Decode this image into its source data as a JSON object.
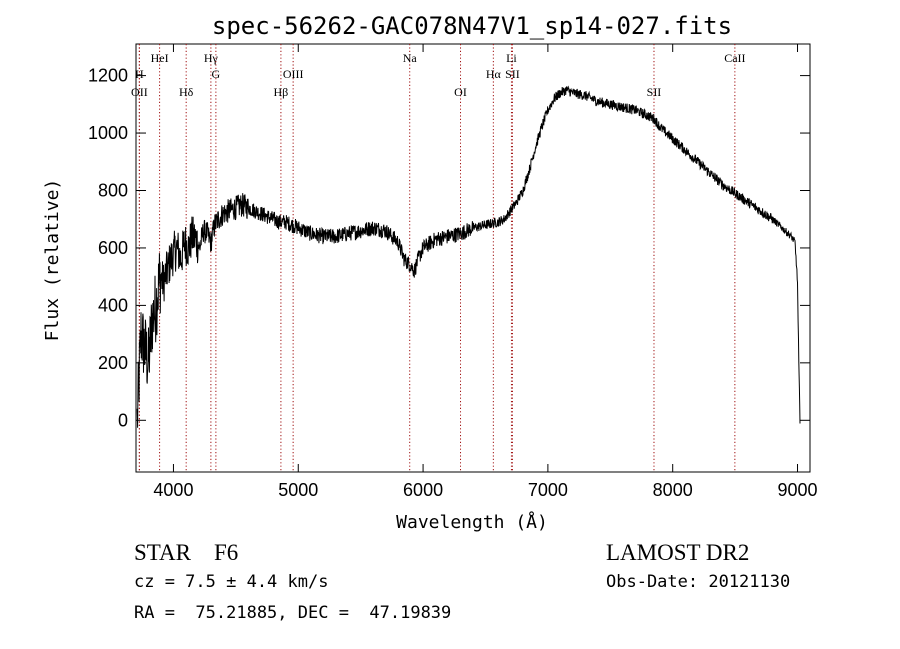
{
  "chart_data": {
    "type": "line",
    "title": "spec-56262-GAC078N47V1_sp14-027.fits",
    "xlabel": "Wavelength (Å)",
    "ylabel": "Flux (relative)",
    "xlim": [
      3700,
      9100
    ],
    "ylim": [
      -180,
      1310
    ],
    "x_ticks": [
      4000,
      5000,
      6000,
      7000,
      8000,
      9000
    ],
    "y_ticks": [
      0,
      200,
      400,
      600,
      800,
      1000,
      1200
    ],
    "grid": false,
    "legend": "none",
    "line_color": "#000000",
    "marker_line_color": "#a01010",
    "series": [
      {
        "x": [
          3710,
          3740,
          3770,
          3800,
          3830,
          3860,
          3890,
          3920,
          3950,
          3980,
          4000,
          4030,
          4060,
          4090,
          4120,
          4150,
          4180,
          4210,
          4240,
          4270,
          4300,
          4330,
          4360,
          4400,
          4450,
          4500,
          4550,
          4600,
          4650,
          4700,
          4750,
          4800,
          4850,
          4900,
          4950,
          5000,
          5100,
          5200,
          5300,
          5400,
          5500,
          5600,
          5700,
          5800,
          5850,
          5900,
          5930,
          5960,
          6000,
          6100,
          6200,
          6300,
          6400,
          6500,
          6600,
          6650,
          6700,
          6750,
          6800,
          6850,
          6900,
          6950,
          7000,
          7050,
          7100,
          7150,
          7200,
          7300,
          7400,
          7500,
          7600,
          7700,
          7800,
          7850,
          7900,
          8000,
          8100,
          8200,
          8300,
          8400,
          8500,
          8600,
          8700,
          8800,
          8850,
          8900,
          8950,
          8980,
          9000,
          9010,
          9020
        ],
        "y": [
          0,
          300,
          250,
          200,
          350,
          400,
          500,
          480,
          520,
          560,
          580,
          600,
          560,
          620,
          600,
          640,
          630,
          600,
          660,
          650,
          620,
          680,
          700,
          720,
          730,
          740,
          750,
          740,
          730,
          720,
          710,
          700,
          690,
          690,
          680,
          670,
          650,
          640,
          640,
          650,
          660,
          670,
          660,
          620,
          560,
          540,
          520,
          560,
          600,
          630,
          640,
          650,
          670,
          680,
          690,
          700,
          730,
          760,
          800,
          870,
          950,
          1020,
          1080,
          1120,
          1140,
          1150,
          1140,
          1130,
          1110,
          1100,
          1090,
          1080,
          1060,
          1050,
          1020,
          980,
          940,
          900,
          860,
          820,
          790,
          760,
          730,
          700,
          680,
          660,
          640,
          620,
          480,
          200,
          0
        ]
      }
    ],
    "line_markers": [
      {
        "name": "OII",
        "x": 3727,
        "row": 3
      },
      {
        "name": "H",
        "x": 3727,
        "row": 2
      },
      {
        "name": "HeI",
        "x": 3889,
        "row": 1
      },
      {
        "name": "Hδ",
        "x": 4102,
        "row": 3
      },
      {
        "name": "Hγ",
        "x": 4300,
        "row": 1
      },
      {
        "name": "G",
        "x": 4340,
        "row": 2
      },
      {
        "name": "Hβ",
        "x": 4861,
        "row": 3
      },
      {
        "name": "OIII",
        "x": 4959,
        "row": 2
      },
      {
        "name": "Na",
        "x": 5893,
        "row": 1
      },
      {
        "name": "OI",
        "x": 6300,
        "row": 3
      },
      {
        "name": "Hα",
        "x": 6563,
        "row": 2
      },
      {
        "name": "SII",
        "x": 6716,
        "row": 2
      },
      {
        "name": "Li",
        "x": 6708,
        "row": 1
      },
      {
        "name": "SII",
        "x": 7850,
        "row": 3
      },
      {
        "name": "CaII",
        "x": 8498,
        "row": 1
      }
    ]
  },
  "info": {
    "class": "STAR    F6",
    "cz": "cz = 7.5 ± 4.4 km/s",
    "coords": "RA =  75.21885, DEC =  47.19839",
    "survey": "LAMOST DR2",
    "obs_date": "Obs-Date: 20121130"
  }
}
